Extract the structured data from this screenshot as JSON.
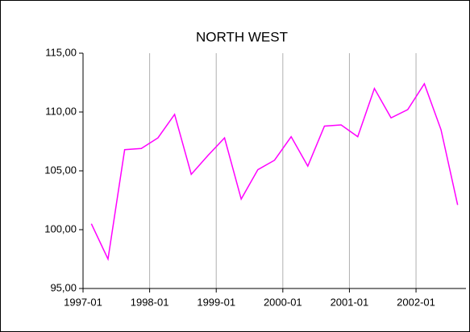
{
  "chart_data": {
    "type": "line",
    "title": "NORTH WEST",
    "categories": [
      "1997-01",
      null,
      null,
      null,
      "1998-01",
      null,
      null,
      null,
      "1999-01",
      null,
      null,
      null,
      "2000-01",
      null,
      null,
      null,
      "2001-01",
      null,
      null,
      null,
      "2002-01",
      null,
      null
    ],
    "values": [
      100.5,
      97.5,
      106.8,
      106.9,
      107.8,
      109.8,
      104.7,
      106.3,
      107.8,
      102.6,
      105.1,
      105.9,
      107.9,
      105.4,
      108.8,
      108.9,
      107.9,
      112.0,
      109.5,
      110.2,
      112.4,
      108.5,
      102.1
    ],
    "color": "#ff00ff",
    "ylim": [
      95,
      115
    ],
    "yticks": [
      {
        "value": 95,
        "label": "95,00"
      },
      {
        "value": 100,
        "label": "100,00"
      },
      {
        "value": 105,
        "label": "105,00"
      },
      {
        "value": 110,
        "label": "110,00"
      },
      {
        "value": 115,
        "label": "115,00"
      }
    ],
    "grid": true
  }
}
